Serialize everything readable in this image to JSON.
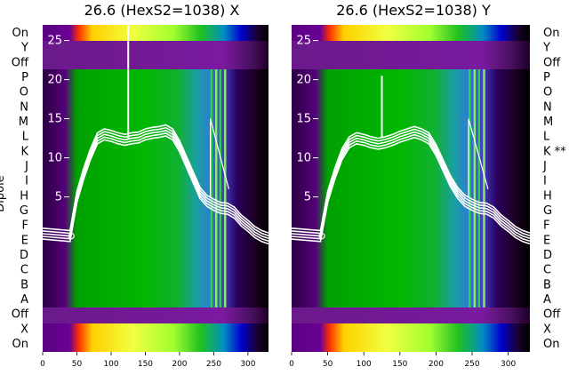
{
  "chart_data": [
    {
      "type": "heatmap",
      "title": "26.6 (HexS2=1038) X",
      "ylabel": "Dipole",
      "xlim": [
        0,
        330
      ],
      "x_ticks": [
        0,
        50,
        100,
        150,
        200,
        250,
        300
      ],
      "inner_ylim": [
        -3,
        27
      ],
      "inner_y_ticks": [
        5,
        10,
        15,
        20,
        25
      ],
      "row_labels": [
        "On",
        "Y",
        "Off",
        "P",
        "O",
        "N",
        "M",
        "L",
        "K",
        "J",
        "I",
        "H",
        "G",
        "F",
        "E",
        "D",
        "C",
        "B",
        "A",
        "Off",
        "X",
        "On"
      ],
      "series": [
        {
          "name": "traces",
          "x": [
            0,
            40,
            50,
            60,
            70,
            80,
            90,
            100,
            110,
            120,
            130,
            140,
            150,
            160,
            170,
            180,
            190,
            200,
            210,
            220,
            230,
            240,
            250,
            260,
            270,
            280,
            290,
            300,
            310,
            320,
            330
          ],
          "y": [
            0.3,
            0,
            5,
            8,
            10.5,
            12.5,
            13,
            12.8,
            12.5,
            12.3,
            12.5,
            12.6,
            13,
            13.2,
            13.3,
            13.5,
            13,
            11.5,
            9.5,
            7.5,
            5.5,
            4.5,
            4,
            3.6,
            3.5,
            3,
            2,
            1.3,
            0.5,
            0,
            -0.3
          ]
        }
      ]
    },
    {
      "type": "heatmap",
      "title": "26.6 (HexS2=1038) Y",
      "xlim": [
        0,
        330
      ],
      "x_ticks": [
        0,
        50,
        100,
        150,
        200,
        250,
        300
      ],
      "inner_ylim": [
        -3,
        27
      ],
      "inner_y_ticks": [
        5,
        10,
        15,
        20,
        25
      ],
      "row_labels": [
        "On",
        "Y",
        "Off",
        "P",
        "O",
        "N",
        "M",
        "L",
        "K **",
        "J",
        "I",
        "H",
        "G",
        "F",
        "E",
        "D",
        "C",
        "B",
        "A",
        "Off",
        "X",
        "On"
      ],
      "series": [
        {
          "name": "traces",
          "x": [
            0,
            40,
            50,
            60,
            70,
            80,
            90,
            100,
            110,
            120,
            130,
            140,
            150,
            160,
            170,
            180,
            190,
            200,
            210,
            220,
            230,
            240,
            250,
            260,
            270,
            280,
            290,
            300,
            310,
            320,
            330
          ],
          "y": [
            0.3,
            0,
            5,
            8,
            10.5,
            12,
            12.5,
            12.3,
            12,
            11.8,
            12,
            12.3,
            12.7,
            13,
            13.3,
            13,
            12.5,
            11,
            9,
            7,
            5.5,
            4.5,
            4,
            3.6,
            3.5,
            3,
            2,
            1.3,
            0.5,
            0,
            -0.3
          ]
        }
      ]
    }
  ]
}
